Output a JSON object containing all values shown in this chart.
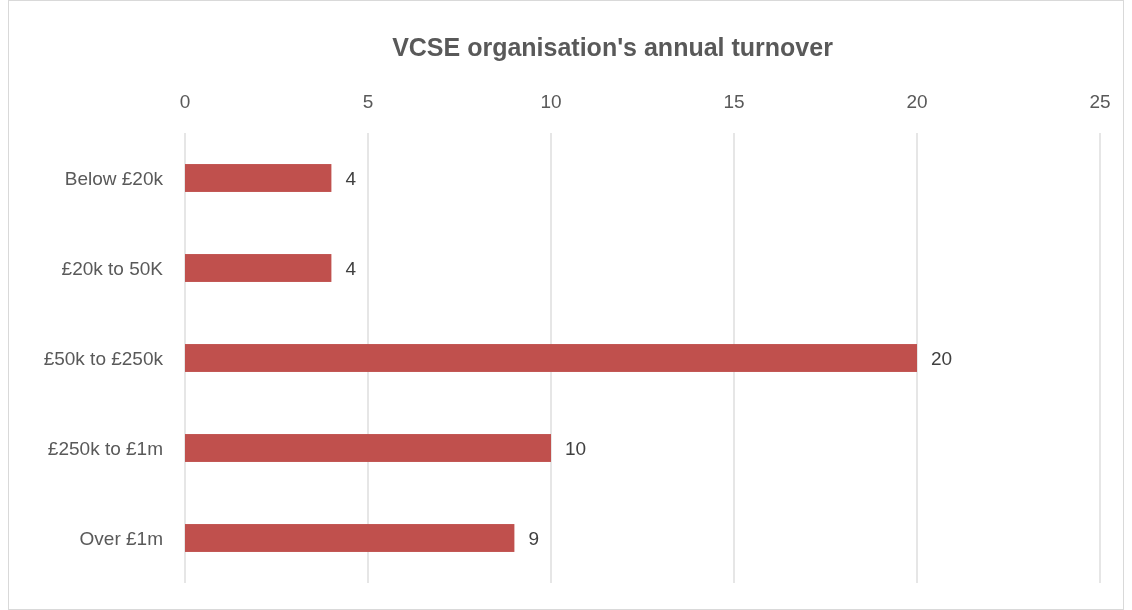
{
  "chart_data": {
    "type": "bar",
    "orientation": "horizontal",
    "title": "VCSE organisation's annual turnover",
    "categories": [
      "Below £20k",
      "£20k to 50K",
      "£50k to £250k",
      "£250k to £1m",
      "Over £1m"
    ],
    "values": [
      4,
      4,
      20,
      10,
      9
    ],
    "color": "#c0504d",
    "xlim": [
      0,
      25
    ],
    "xticks": [
      0,
      5,
      10,
      15,
      20,
      25
    ],
    "grid": "x",
    "data_labels": true
  }
}
